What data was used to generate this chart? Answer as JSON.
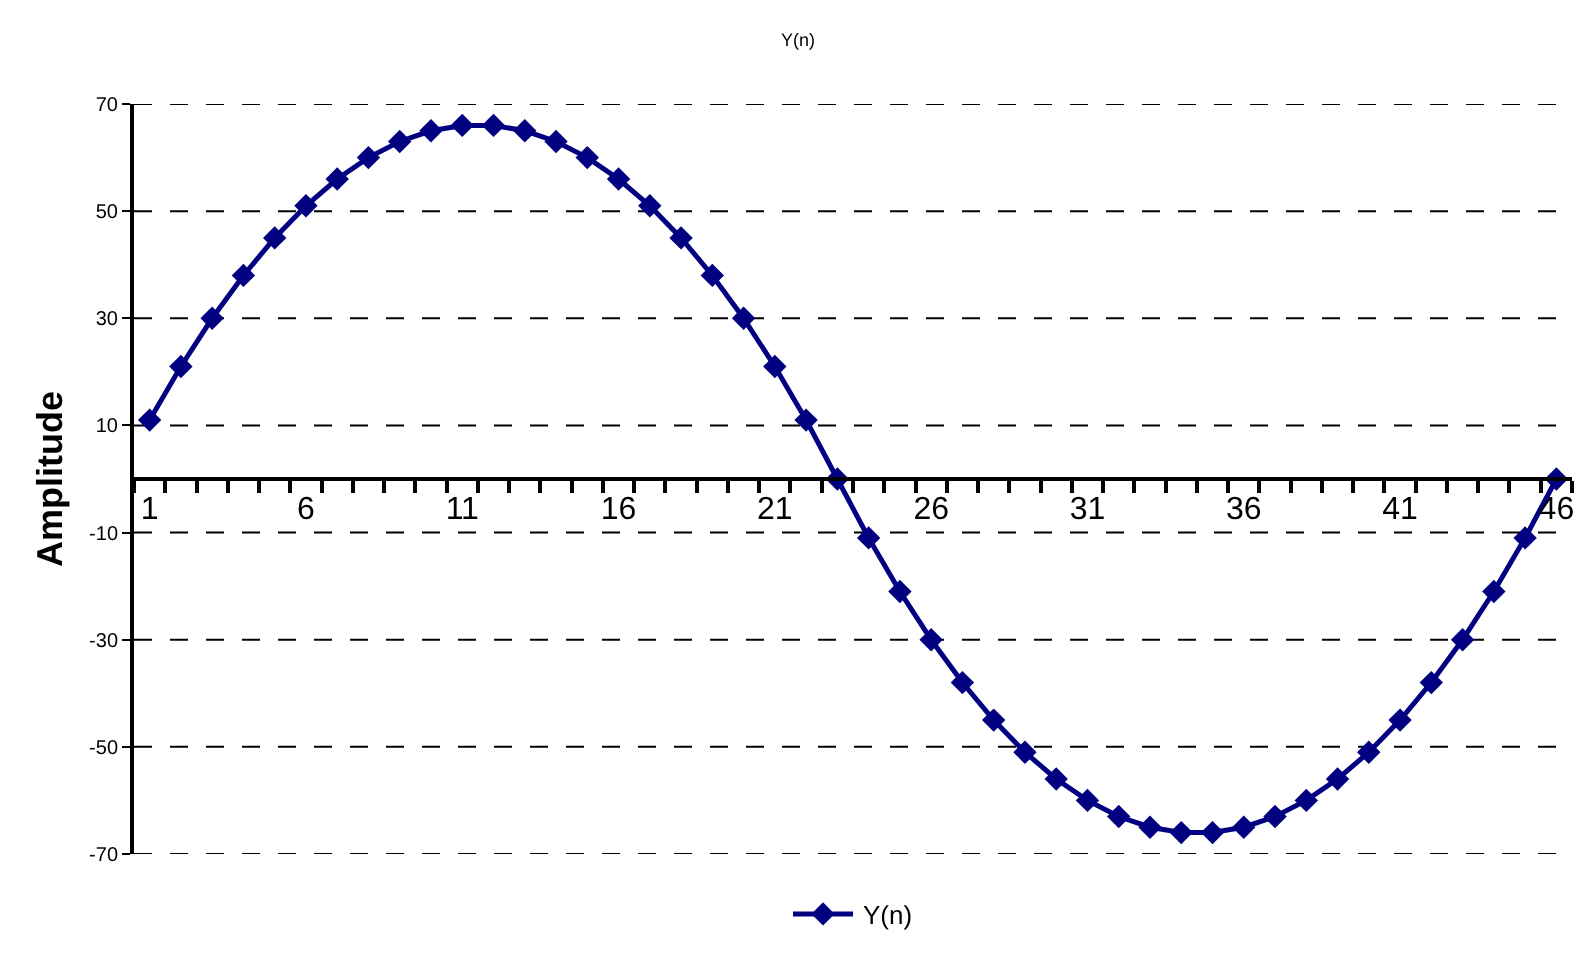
{
  "chart_data": {
    "type": "line",
    "title": "Y(n)",
    "ylabel": "Amplitude",
    "x": [
      1,
      2,
      3,
      4,
      5,
      6,
      7,
      8,
      9,
      10,
      11,
      12,
      13,
      14,
      15,
      16,
      17,
      18,
      19,
      20,
      21,
      22,
      23,
      24,
      25,
      26,
      27,
      28,
      29,
      30,
      31,
      32,
      33,
      34,
      35,
      36,
      37,
      38,
      39,
      40,
      41,
      42,
      43,
      44,
      45,
      46
    ],
    "series": [
      {
        "name": "Y(n)",
        "color": "#000080",
        "values": [
          11,
          21,
          30,
          38,
          45,
          51,
          56,
          60,
          63,
          65,
          66,
          66,
          65,
          63,
          60,
          56,
          51,
          45,
          38,
          30,
          21,
          11,
          0,
          -11,
          -21,
          -30,
          -38,
          -45,
          -51,
          -56,
          -60,
          -63,
          -65,
          -66,
          -66,
          -65,
          -63,
          -60,
          -56,
          -51,
          -45,
          -38,
          -30,
          -21,
          -11,
          0
        ]
      }
    ],
    "xlim": [
      0.5,
      46.5
    ],
    "xticks": [
      1,
      6,
      11,
      16,
      21,
      26,
      31,
      36,
      41,
      46
    ],
    "ylim": [
      -70,
      70
    ],
    "yticks": [
      -70,
      -50,
      -30,
      -10,
      10,
      30,
      50,
      70
    ],
    "grid": "y",
    "legend": "bottom",
    "marker": "diamond",
    "line_style": "solid"
  }
}
